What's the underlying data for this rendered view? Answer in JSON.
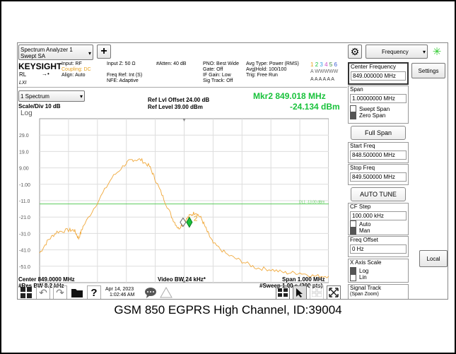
{
  "header": {
    "mode_title": "Spectrum Analyzer 1",
    "mode_sub": "Swept SA",
    "brand": "KEYSIGHT",
    "rl_label": "RL",
    "lxi_label": "LXI",
    "input_line1": "Input: RF",
    "input_line2": "Coupling: DC",
    "input_line3": "Align: Auto",
    "impedance": "Input Z: 50 Ω",
    "atten": "#Atten: 40 dB",
    "freq_ref": "Freq Ref: Int (S)",
    "nfe": "NFE: Adaptive",
    "pno": "PNO: Best Wide",
    "gate": "Gate: Off",
    "if_gain": "IF Gain: Low",
    "sig_track": "Sig Track: Off",
    "avg_type": "Avg Type: Power (RMS)",
    "avg_hold": "Avg|Hold: 100/100",
    "trig": "Trig: Free Run",
    "trace_nums": [
      "1",
      "2",
      "3",
      "4",
      "5",
      "6"
    ],
    "trace_row2": "A WWWWW",
    "trace_row3": "A A A A A A",
    "freq_dropdown": "Frequency"
  },
  "plot": {
    "window_select": "1 Spectrum",
    "scale": "Scale/Div 10 dB",
    "scale_type": "Log",
    "ref_offset": "Ref Lvl Offset 24.00 dB",
    "ref_level": "Ref Level 39.00 dBm",
    "marker_label": "Mkr2  849.018 MHz",
    "marker_value": "-24.134 dBm",
    "display_line_label": "DL1 -13.00 dBm",
    "marker_tag": "2",
    "y_ticks": [
      "29.0",
      "19.0",
      "9.00",
      "-1.00",
      "-11.0",
      "-21.0",
      "-31.0",
      "-41.0",
      "-51.0"
    ],
    "center": "Center 849.0000 MHz",
    "res_bw": "#Res BW 8.2 kHz",
    "video_bw": "Video BW 24 kHz*",
    "span": "Span 1.000 MHz",
    "sweep": "#Sweep 1.00 s (200 pts)"
  },
  "chart_data": {
    "type": "line",
    "y_range": [
      -61,
      39
    ],
    "x_range": [
      848.5,
      849.5
    ],
    "display_line": -13,
    "marker": {
      "x": 849.018,
      "y": -24.134
    },
    "series": [
      {
        "x": [
          848.5,
          848.53,
          848.56,
          848.6,
          848.62,
          848.635,
          848.65,
          848.7,
          848.75,
          848.8,
          848.82,
          848.85,
          848.88,
          848.9,
          848.93,
          848.96,
          848.98,
          849.0,
          849.02,
          849.04,
          849.06,
          849.08,
          849.1,
          849.15,
          849.2,
          849.25,
          849.3,
          849.35,
          849.4,
          849.45,
          849.5
        ],
        "y": [
          -43,
          -35,
          -30,
          -29,
          -29,
          -34,
          -27,
          -12,
          3,
          12,
          14,
          14,
          10,
          2,
          -10,
          -22,
          -28,
          -24,
          -20,
          -18,
          -22,
          -30,
          -37,
          -44,
          -48,
          -52,
          -53,
          -55,
          -55,
          -57,
          -57
        ]
      }
    ]
  },
  "panel": {
    "center_freq_label": "Center Frequency",
    "center_freq_value": "849.000000 MHz",
    "settings": "Settings",
    "span_label": "Span",
    "span_value": "1.00000000 MHz",
    "swept_span": "Swept Span",
    "zero_span": "Zero Span",
    "full_span": "Full Span",
    "start_label": "Start Freq",
    "start_value": "848.500000 MHz",
    "stop_label": "Stop Freq",
    "stop_value": "849.500000 MHz",
    "auto_tune": "AUTO TUNE",
    "cf_step_label": "CF Step",
    "cf_step_value": "100.000 kHz",
    "auto": "Auto",
    "man": "Man",
    "freq_offset_label": "Freq Offset",
    "freq_offset_value": "0 Hz",
    "x_axis_label": "X Axis Scale",
    "log": "Log",
    "lin": "Lin",
    "signal_track": "Signal Track",
    "span_zoom": "(Span Zoom)",
    "local": "Local"
  },
  "taskbar": {
    "date": "Apr 14, 2023",
    "time": "1:02:46 AM",
    "help": "?"
  },
  "caption": "GSM 850 EGPRS High Channel, ID:39004"
}
